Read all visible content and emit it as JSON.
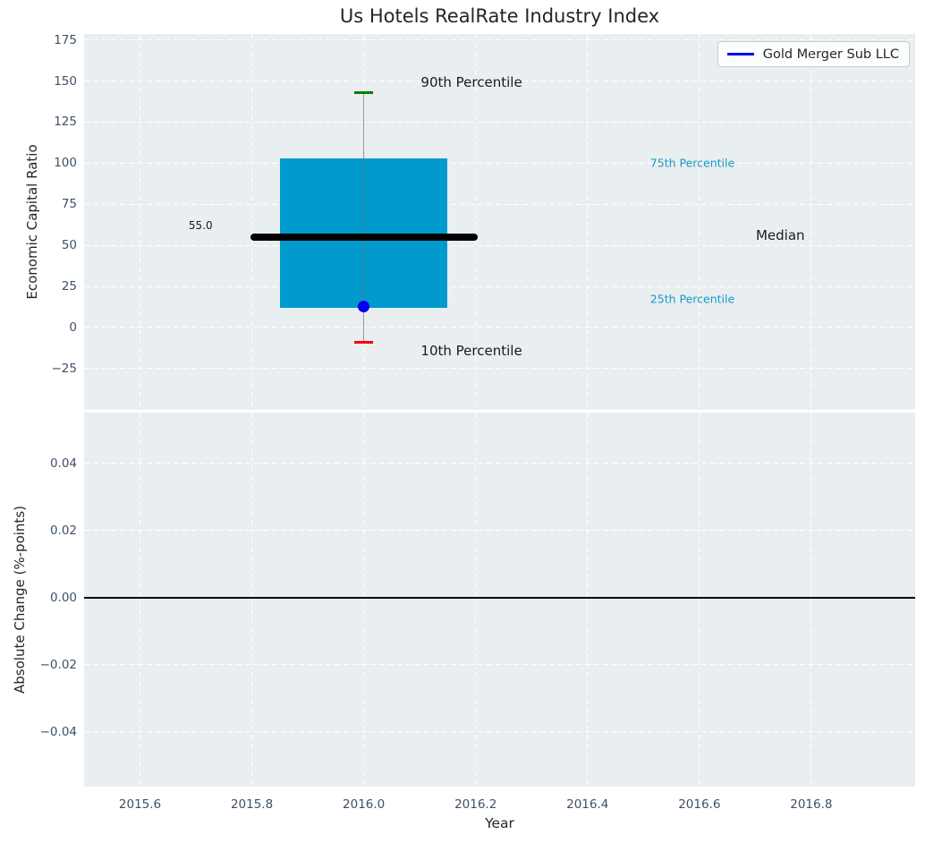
{
  "title": "Us Hotels RealRate Industry Index",
  "legend": {
    "label": "Gold Merger Sub LLC"
  },
  "colors": {
    "panel_bg": "#e9eef0",
    "grid": "#ffffff",
    "box_fill": "#009ACE",
    "median_line": "#000000",
    "whisker": "#6e6e6e",
    "cap_90": "#008000",
    "cap_10": "#ff0000",
    "company_marker": "#0000ee",
    "legend_line": "#0000ee",
    "tick_text": "#3d5166",
    "label_text": "#1a1a1a",
    "percentile_text": "#1599cc",
    "zero_line": "#000000"
  },
  "x_axis": {
    "label": "Year",
    "xlim": [
      2015.5,
      2016.9857
    ],
    "xticks": {
      "values": [
        2015.6,
        2015.8,
        2016.0,
        2016.2,
        2016.4,
        2016.6,
        2016.8
      ],
      "labels": [
        "2015.6",
        "2015.8",
        "2016.0",
        "2016.2",
        "2016.4",
        "2016.6",
        "2016.8"
      ]
    }
  },
  "chart_data": [
    {
      "type": "box",
      "name": "economic-capital-ratio-panel",
      "ylabel": "Economic Capital Ratio",
      "ylim": [
        -50.1,
        178.6
      ],
      "yticks": {
        "values": [
          175,
          150,
          125,
          100,
          75,
          50,
          25,
          0,
          -25
        ],
        "labels": [
          "175",
          "150",
          "125",
          "100",
          "75",
          "50",
          "25",
          "0",
          "−25"
        ]
      },
      "grid": "dashed-white",
      "legend_position": "upper-right",
      "x": 2016.0,
      "box_half_width": 0.15,
      "median_half_width": 0.203,
      "cap_half_width": 0.017,
      "values": {
        "p90": 143,
        "p75": 103,
        "median": 55,
        "p25": 12,
        "p10": -9,
        "company": 13
      },
      "annotations": [
        {
          "text": "90th Percentile",
          "x": 2016.102,
          "y": 149,
          "size": 15,
          "color": "dark"
        },
        {
          "text": "10th Percentile",
          "x": 2016.102,
          "y": -14,
          "size": 15,
          "color": "dark"
        },
        {
          "text": "75th Percentile",
          "x": 2016.512,
          "y": 100.3,
          "size": 12.5,
          "color": "accent"
        },
        {
          "text": "25th Percentile",
          "x": 2016.512,
          "y": 17.3,
          "size": 12.5,
          "color": "accent"
        },
        {
          "text": "Median",
          "x": 2016.701,
          "y": 56,
          "size": 15,
          "color": "dark"
        },
        {
          "text": "55.0",
          "x": 2015.687,
          "y": 62,
          "size": 12,
          "color": "dark"
        }
      ]
    },
    {
      "type": "line",
      "name": "absolute-change-panel",
      "ylabel": "Absolute Change (%-points)",
      "ylim": [
        -0.0563,
        0.0552
      ],
      "yticks": {
        "values": [
          0.04,
          0.02,
          0,
          -0.02,
          -0.04
        ],
        "labels": [
          "0.04",
          "0.02",
          "0.00",
          "−0.02",
          "−0.04"
        ]
      },
      "grid": "dashed-white",
      "zero_line": 0.0,
      "series": [
        {
          "name": "Gold Merger Sub LLC",
          "x": [],
          "y": []
        }
      ]
    }
  ]
}
